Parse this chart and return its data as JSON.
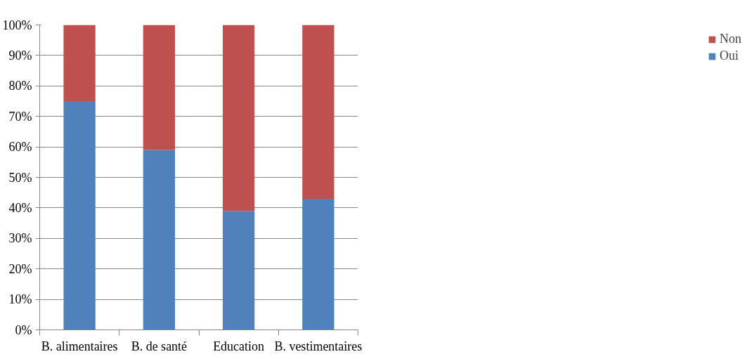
{
  "chart_data": {
    "type": "bar",
    "stacked": true,
    "categories": [
      "B. alimentaires",
      "B. de santé",
      "Education",
      "B. vestimentaires"
    ],
    "series": [
      {
        "name": "Oui",
        "color": "#4f81bd",
        "values": [
          75,
          59,
          39,
          43
        ]
      },
      {
        "name": "Non",
        "color": "#c0504d",
        "values": [
          25,
          41,
          61,
          57
        ]
      }
    ],
    "ylim": [
      0,
      100
    ],
    "yticks": [
      {
        "value": 0,
        "label": "0%"
      },
      {
        "value": 10,
        "label": "10%"
      },
      {
        "value": 20,
        "label": "20%"
      },
      {
        "value": 30,
        "label": "30%"
      },
      {
        "value": 40,
        "label": "40%"
      },
      {
        "value": 50,
        "label": "50%"
      },
      {
        "value": 60,
        "label": "60%"
      },
      {
        "value": 70,
        "label": "70%"
      },
      {
        "value": 80,
        "label": "80%"
      },
      {
        "value": 90,
        "label": "90%"
      },
      {
        "value": 100,
        "label": "100%"
      }
    ],
    "grid": "y",
    "legend": "right"
  }
}
